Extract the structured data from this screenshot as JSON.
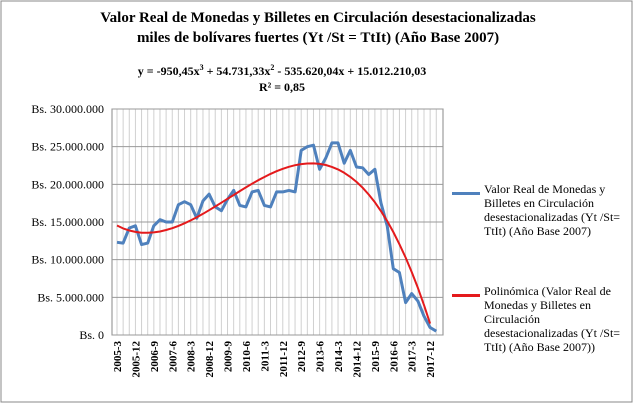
{
  "chart_data": {
    "type": "line",
    "title": [
      "Valor Real de Monedas y Billetes en Circulación  desestacionalizadas",
      "miles de bolívares fuertes (Yt /St = TtIt) (Año Base 2007)"
    ],
    "equation": [
      "y = -950,45x",
      "3",
      " + 54.731,33x",
      "2",
      " - 535.620,04x + 15.012.210,03"
    ],
    "r_squared": "R² = 0,85",
    "categories": [
      "2005-3",
      null,
      null,
      "2005-12",
      null,
      null,
      "2006-9",
      null,
      null,
      "2007-6",
      null,
      null,
      "2008-3",
      null,
      null,
      "2008-12",
      null,
      null,
      "2009-9",
      null,
      null,
      "2010-6",
      null,
      null,
      "2011-3",
      null,
      null,
      "2011-12",
      null,
      null,
      "2012-9",
      null,
      null,
      "2013-6",
      null,
      null,
      "2014-3",
      null,
      null,
      "2014-12",
      null,
      null,
      "2015-9",
      null,
      null,
      "2016-6",
      null,
      null,
      "2017-3",
      null,
      null,
      "2017-12",
      null
    ],
    "series": [
      {
        "name": "Valor Real de Monedas y Billetes en Circulación desestacionalizadas (Yt /St= TtIt) (Año Base 2007)",
        "color": "#4f81bd",
        "values": [
          12300000,
          12200000,
          14200000,
          14500000,
          12000000,
          12200000,
          14500000,
          15300000,
          15000000,
          15000000,
          17300000,
          17700000,
          17300000,
          15500000,
          17800000,
          18700000,
          17000000,
          16500000,
          18000000,
          19200000,
          17200000,
          17000000,
          19000000,
          19200000,
          17200000,
          17000000,
          19000000,
          19000000,
          19200000,
          19000000,
          24500000,
          25000000,
          25200000,
          22000000,
          23500000,
          25500000,
          25500000,
          22800000,
          24500000,
          22300000,
          22200000,
          21300000,
          22000000,
          17500000,
          14500000,
          8800000,
          8300000,
          4300000,
          5500000,
          4500000,
          2500000,
          1000000,
          500000
        ]
      },
      {
        "name": "Polinómica (Valor Real de Monedas y Billetes en Circulación desestacionalizadas (Yt /St= TtIt) (Año Base 2007))",
        "color": "#e41a1c",
        "values": [
          14530000,
          14152000,
          13872000,
          13685000,
          13584000,
          13564000,
          13619000,
          13743000,
          13932000,
          14179000,
          14478000,
          14824000,
          15211000,
          15633000,
          16085000,
          16560000,
          17055000,
          17561000,
          18074000,
          18589000,
          19099000,
          19598000,
          20082000,
          20543000,
          20978000,
          21379000,
          21742000,
          22060000,
          22328000,
          22540000,
          22690000,
          22771000,
          22782000,
          22713000,
          22561000,
          22318000,
          21978000,
          21536000,
          20986000,
          20328000,
          19553000,
          18646000,
          17610000,
          16440000,
          15129000,
          13670000,
          12058000,
          10291000,
          8357000,
          6253000,
          3973000,
          1512000,
          null
        ]
      }
    ],
    "ylim": [
      0,
      30000000
    ],
    "yticks": [
      {
        "value": 0,
        "label": "Bs. 0"
      },
      {
        "value": 5000000,
        "label": "Bs. 5.000.000"
      },
      {
        "value": 10000000,
        "label": "Bs. 10.000.000"
      },
      {
        "value": 15000000,
        "label": "Bs. 15.000.000"
      },
      {
        "value": 20000000,
        "label": "Bs. 20.000.000"
      },
      {
        "value": 25000000,
        "label": "Bs. 25.000.000"
      },
      {
        "value": 30000000,
        "label": "Bs. 30.000.000"
      }
    ],
    "grid": true,
    "legend": "right"
  }
}
